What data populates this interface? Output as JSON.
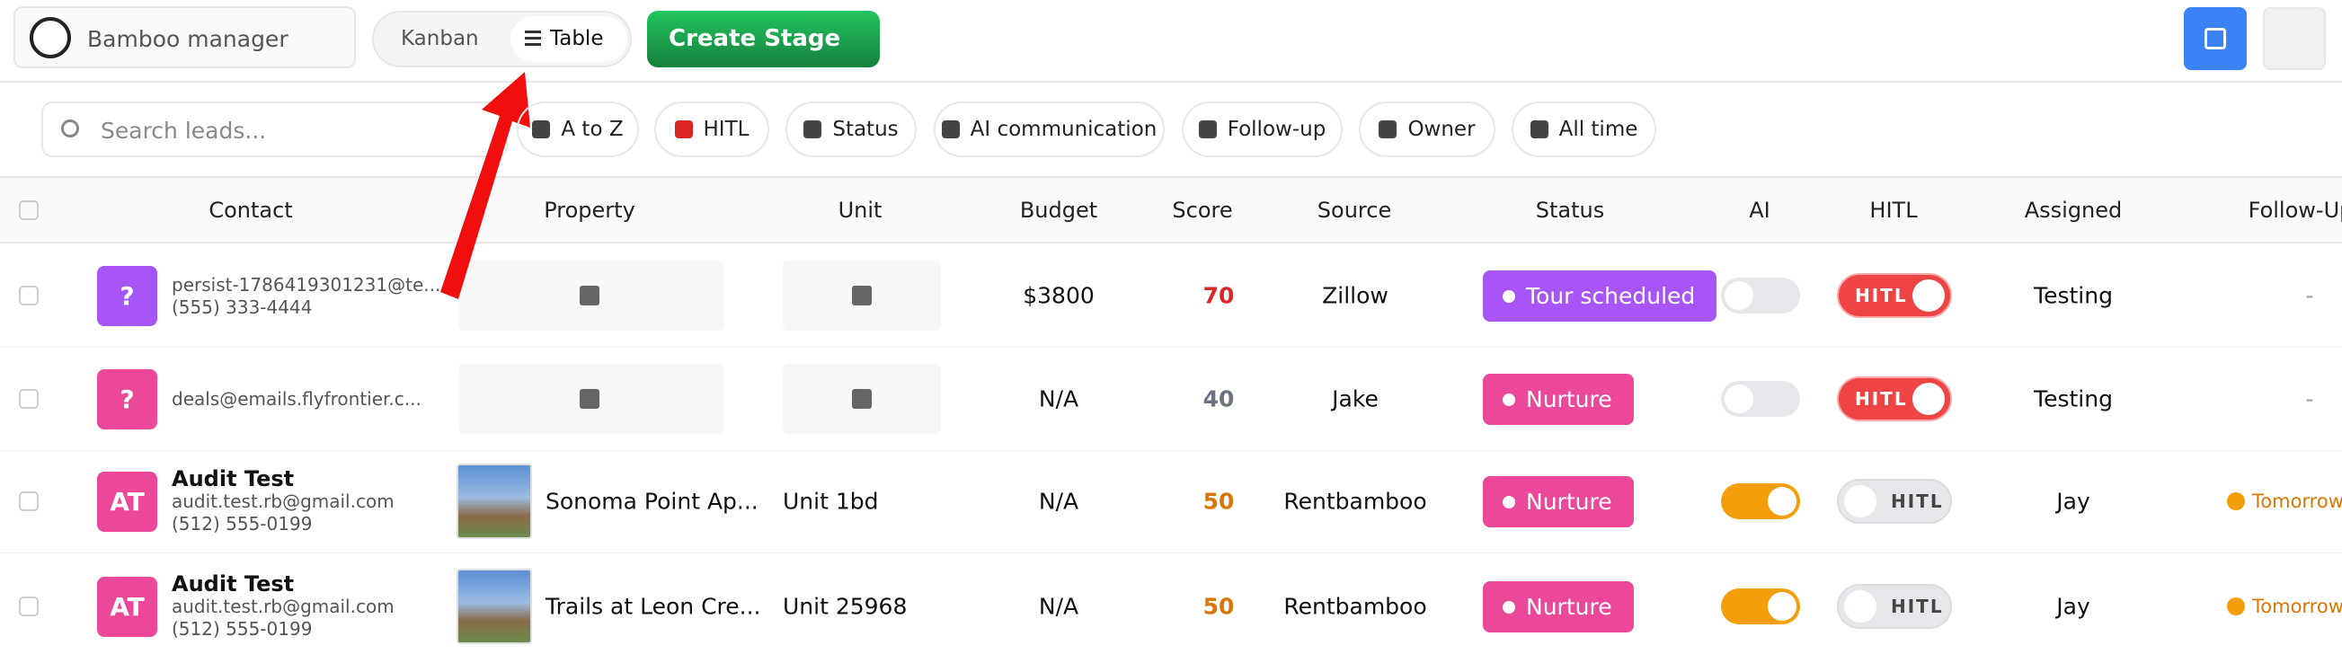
{
  "header": {
    "app_name": "Bamboo manager",
    "tabs": [
      "Kanban",
      "Table"
    ],
    "create_button": "Create Stage"
  },
  "filters": {
    "search_placeholder": "Search leads...",
    "chips": [
      "A to Z",
      "HITL",
      "Status",
      "AI communication",
      "Follow-up",
      "Owner",
      "All time"
    ]
  },
  "table": {
    "columns": [
      "Contact",
      "Property",
      "Unit",
      "Budget",
      "Score",
      "Source",
      "Status",
      "AI",
      "HITL",
      "Assigned",
      "Follow-Up"
    ],
    "rows": [
      {
        "avatar": "?",
        "avatar_color": "#a855f7",
        "email": "persist-1786419301231@te...",
        "phone": "(555) 333-4444",
        "budget": "$3800",
        "score": 70,
        "score_color": "#dc2626",
        "source": "Zillow",
        "status": "Tour scheduled",
        "status_color": "#a855f7",
        "ai": false,
        "hitl": true,
        "hitl_label": "HITL",
        "assigned": "Testing",
        "follow_up": "-"
      },
      {
        "avatar": "?",
        "avatar_color": "#ec4899",
        "email": "deals@emails.flyfrontier.c...",
        "budget": "N/A",
        "score": 40,
        "score_color": "#6b7280",
        "source": "Jake",
        "status": "Nurture",
        "status_color": "#ec4899",
        "ai": false,
        "hitl": true,
        "hitl_label": "HITL",
        "assigned": "Testing",
        "follow_up": "-"
      },
      {
        "avatar": "AT",
        "avatar_color": "#ec4899",
        "name": "Audit Test",
        "email": "audit.test.rb@gmail.com",
        "phone": "(512) 555-0199",
        "property": "Sonoma Point Ap...",
        "unit": "Unit 1bd",
        "budget": "N/A",
        "score": 50,
        "score_color": "#d97706",
        "source": "Rentbamboo",
        "status": "Nurture",
        "status_color": "#ec4899",
        "ai": true,
        "hitl": false,
        "hitl_label": "HITL",
        "assigned": "Jay",
        "follow_up": "Tomorrow"
      },
      {
        "avatar": "AT",
        "avatar_color": "#ec4899",
        "name": "Audit Test",
        "email": "audit.test.rb@gmail.com",
        "phone": "(512) 555-0199",
        "property": "Trails at Leon Cre...",
        "unit": "Unit 25968",
        "budget": "N/A",
        "score": 50,
        "score_color": "#d97706",
        "source": "Rentbamboo",
        "status": "Nurture",
        "status_color": "#ec4899",
        "ai": true,
        "hitl": false,
        "hitl_label": "HITL",
        "assigned": "Jay",
        "follow_up": "Tomorrow"
      }
    ]
  }
}
